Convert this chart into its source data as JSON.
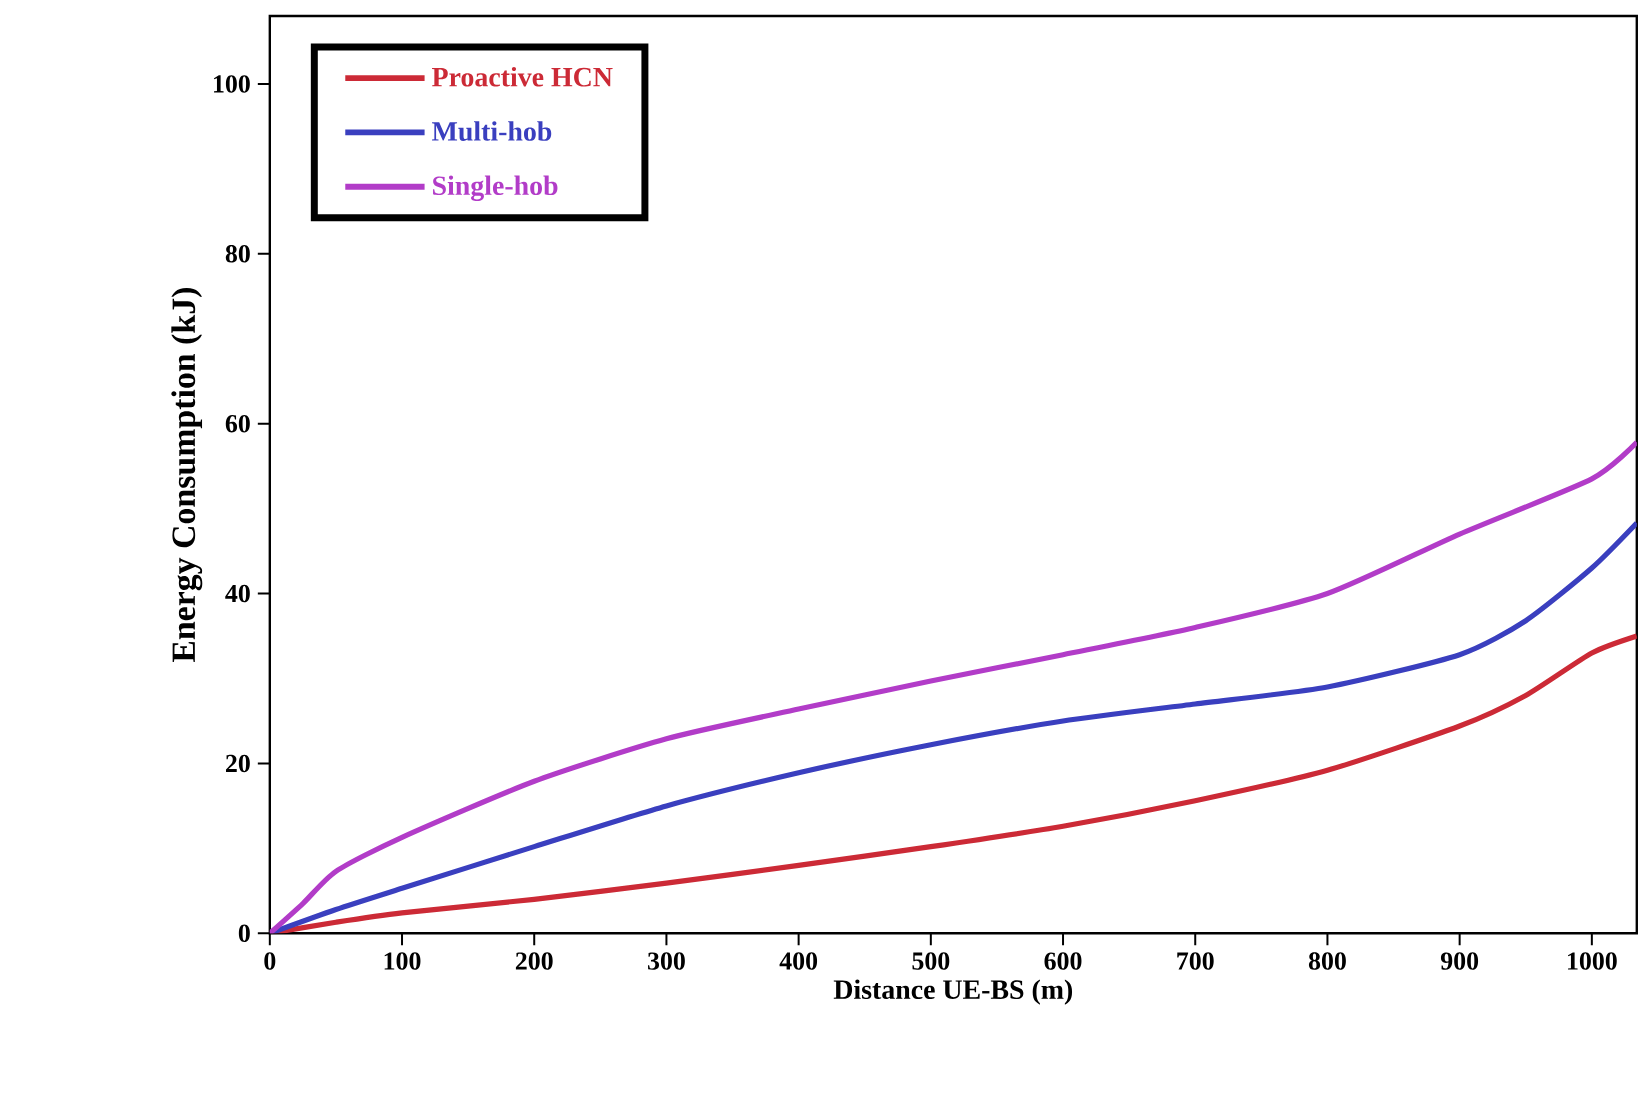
{
  "chart_data": {
    "type": "line",
    "xlabel": "Distance UE-BS (m)",
    "ylabel": "Energy Consumption (kJ)",
    "xlim": [
      0,
      1034
    ],
    "ylim": [
      0,
      108
    ],
    "xticks": [
      0,
      100,
      200,
      300,
      400,
      500,
      600,
      700,
      800,
      900,
      1000
    ],
    "yticks": [
      0,
      20,
      40,
      60,
      80,
      100
    ],
    "grid": false,
    "legend": "top left",
    "line_style": "solid",
    "marker": "none",
    "series": [
      {
        "name": "Proactive HCN",
        "color": "#cc2a36",
        "x": [
          0,
          50,
          100,
          200,
          300,
          400,
          500,
          600,
          700,
          800,
          900,
          950,
          1000,
          1034
        ],
        "values": [
          0,
          1.3,
          2.4,
          4.0,
          5.9,
          8.0,
          10.2,
          12.6,
          15.6,
          19.2,
          24.4,
          28,
          33,
          35
        ]
      },
      {
        "name": "Multi-hob",
        "color": "#3a3fbf",
        "x": [
          0,
          50,
          100,
          200,
          300,
          400,
          500,
          600,
          700,
          800,
          900,
          950,
          1000,
          1034
        ],
        "values": [
          0,
          2.8,
          5.3,
          10.2,
          15.0,
          18.9,
          22.2,
          25.0,
          27.0,
          29.0,
          32.8,
          36.8,
          43,
          48.3
        ]
      },
      {
        "name": "Single-hob",
        "color": "#b23cc8",
        "x": [
          0,
          25,
          50,
          100,
          200,
          300,
          400,
          500,
          600,
          700,
          800,
          900,
          1000,
          1034
        ],
        "values": [
          0,
          3.5,
          7.3,
          11.3,
          17.9,
          22.9,
          26.4,
          29.7,
          32.8,
          36.0,
          40.0,
          47.0,
          53.5,
          57.8
        ]
      }
    ]
  }
}
